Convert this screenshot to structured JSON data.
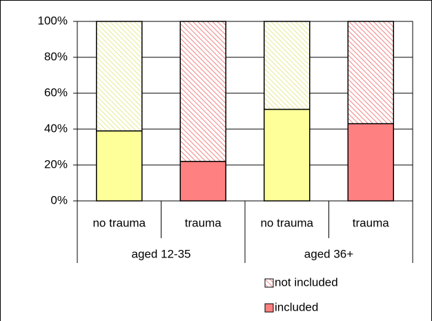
{
  "chart_data": {
    "type": "stacked-bar-100",
    "categories": [
      "no trauma",
      "trauma",
      "no trauma",
      "trauma"
    ],
    "groups": [
      "aged 12-35",
      "aged 36+"
    ],
    "series": [
      {
        "name": "included",
        "color": "#ff8080",
        "colors": [
          "#ffff99",
          "#ff8080",
          "#ffff99",
          "#ff8080"
        ],
        "hatched": false,
        "values": [
          39,
          22,
          51,
          43
        ]
      },
      {
        "name": "not included",
        "color": "#ff8080",
        "colors": [
          "#e8e890",
          "#f08080",
          "#e8e890",
          "#f08080"
        ],
        "hatched": true,
        "values": [
          61,
          78,
          49,
          57
        ]
      }
    ],
    "ylim": [
      0,
      100
    ],
    "yticks": [
      {
        "value": 0,
        "label": "0%"
      },
      {
        "value": 20,
        "label": "20%"
      },
      {
        "value": 40,
        "label": "40%"
      },
      {
        "value": 60,
        "label": "60%"
      },
      {
        "value": 80,
        "label": "80%"
      },
      {
        "value": 100,
        "label": "100%"
      }
    ],
    "grid": true
  }
}
